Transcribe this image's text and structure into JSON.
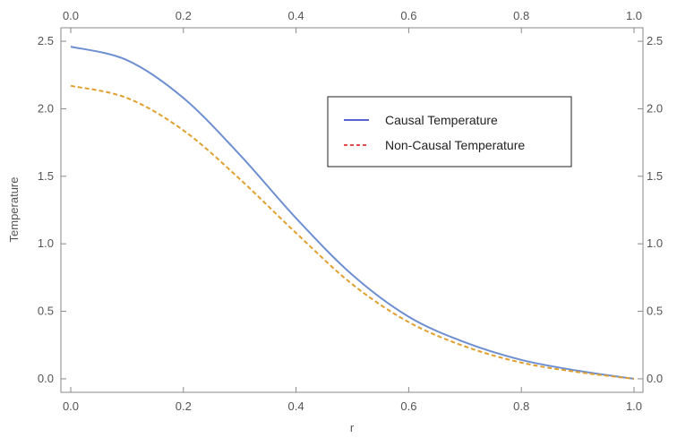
{
  "chart_data": {
    "type": "line",
    "title": "",
    "xlabel": "r",
    "ylabel": "Temperature",
    "xlim": [
      0,
      1.0
    ],
    "ylim": [
      -0.1,
      2.6
    ],
    "x_ticks": [
      "0.0",
      "0.2",
      "0.4",
      "0.6",
      "0.8",
      "1.0"
    ],
    "y_ticks": [
      "0.0",
      "0.5",
      "1.0",
      "1.5",
      "2.0",
      "2.5"
    ],
    "legend_position": "upper-right",
    "grid": false,
    "x": [
      0.0,
      0.1,
      0.2,
      0.3,
      0.4,
      0.5,
      0.6,
      0.7,
      0.8,
      0.9,
      1.0
    ],
    "series": [
      {
        "name": "Causal Temperature",
        "color": "#6e8fd0",
        "style": "solid",
        "legend_color": "#3f4fc8",
        "values": [
          2.46,
          2.36,
          2.08,
          1.66,
          1.19,
          0.77,
          0.46,
          0.27,
          0.14,
          0.06,
          0.0
        ]
      },
      {
        "name": "Non-Causal Temperature",
        "color": "#e0a030",
        "style": "dashed",
        "legend_color": "#e03030",
        "values": [
          2.17,
          2.08,
          1.84,
          1.48,
          1.08,
          0.7,
          0.42,
          0.24,
          0.12,
          0.05,
          0.0
        ]
      }
    ]
  }
}
